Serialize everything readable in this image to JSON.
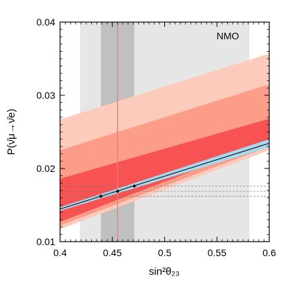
{
  "chart_data": {
    "type": "area",
    "title": "",
    "xlabel": "sin²θ₂₃",
    "ylabel": "P(ν̄μ→ν̄e)",
    "xlim": [
      0.4,
      0.6
    ],
    "ylim": [
      0.01,
      0.04
    ],
    "x_ticks": [
      "0.4",
      "0.45",
      "0.5",
      "0.55",
      "0.6"
    ],
    "y_ticks": [
      "0.01",
      "0.02",
      "0.03",
      "0.04"
    ],
    "annotation": "NMO",
    "vertical_bands": [
      {
        "range": [
          0.419,
          0.581
        ],
        "color": "#e6e6e6"
      },
      {
        "range": [
          0.439,
          0.471
        ],
        "color": "#c0c0c0"
      }
    ],
    "best_fit_x": 0.455,
    "best_fit_color": "#e08080",
    "bands": [
      {
        "x": [
          0.4,
          0.6
        ],
        "lower": [
          0.0117,
          0.0225
        ],
        "upper": [
          0.0267,
          0.0357
        ],
        "color": "#fccbbb"
      },
      {
        "x": [
          0.4,
          0.6
        ],
        "lower": [
          0.0122,
          0.023
        ],
        "upper": [
          0.0225,
          0.0315
        ],
        "color": "#fb9d88"
      },
      {
        "x": [
          0.4,
          0.6
        ],
        "lower": [
          0.0127,
          0.0237
        ],
        "upper": [
          0.0186,
          0.0268
        ],
        "color": "#f75353"
      },
      {
        "x": [
          0.4,
          0.6
        ],
        "lower": [
          0.0142,
          0.0229
        ],
        "upper": [
          0.0147,
          0.024
        ],
        "color": "#a8d8ee"
      }
    ],
    "central_line": {
      "x": [
        0.4,
        0.6
      ],
      "y": [
        0.01445,
        0.02345
      ]
    },
    "points": [
      {
        "x": 0.439,
        "y": 0.0162
      },
      {
        "x": 0.455,
        "y": 0.01688
      },
      {
        "x": 0.471,
        "y": 0.0176
      }
    ],
    "horizontal_guides": [
      0.0162,
      0.01688,
      0.0176
    ]
  }
}
